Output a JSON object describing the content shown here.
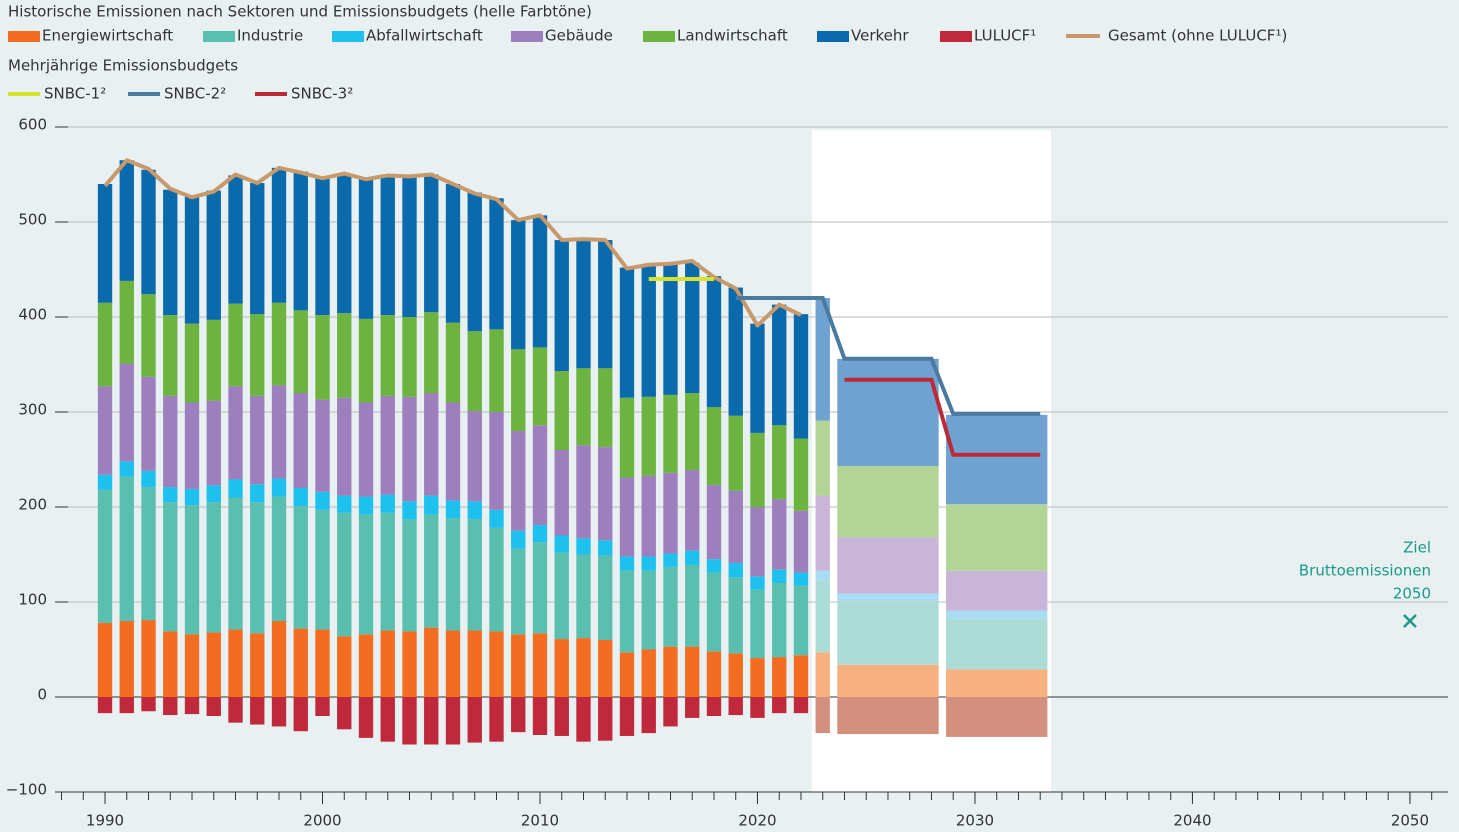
{
  "chart_data": {
    "type": "bar",
    "stacked": true,
    "title": "Historische Emissionen nach Sektoren und Emissionsbudgets (helle Farbtöne)",
    "subtitle": "Mehrjährige Emissionsbudgets",
    "x": [
      1990,
      1991,
      1992,
      1993,
      1994,
      1995,
      1996,
      1997,
      1998,
      1999,
      2000,
      2001,
      2002,
      2003,
      2004,
      2005,
      2006,
      2007,
      2008,
      2009,
      2010,
      2011,
      2012,
      2013,
      2014,
      2015,
      2016,
      2017,
      2018,
      2019,
      2020,
      2021,
      2022
    ],
    "series": [
      {
        "name": "Energiewirtschaft",
        "color": "#f26d21",
        "light_color": "#f7b07f",
        "values": [
          78,
          80,
          81,
          69,
          66,
          68,
          71,
          67,
          80,
          72,
          71,
          64,
          66,
          70,
          69,
          73,
          70,
          70,
          69,
          66,
          67,
          61,
          62,
          60,
          47,
          50,
          53,
          53,
          48,
          46,
          41,
          42,
          44
        ],
        "budget_values": [
          47,
          34,
          29
        ]
      },
      {
        "name": "Industrie",
        "color": "#5bbfb0",
        "light_color": "#addcd6",
        "values": [
          140,
          152,
          140,
          136,
          136,
          137,
          139,
          138,
          131,
          129,
          126,
          130,
          126,
          124,
          118,
          119,
          118,
          117,
          109,
          90,
          96,
          91,
          88,
          89,
          86,
          83,
          84,
          86,
          83,
          80,
          72,
          78,
          73
        ],
        "budget_values": [
          76,
          68,
          54
        ]
      },
      {
        "name": "Abfallwirtschaft",
        "color": "#1ec0ee",
        "light_color": "#a8dcf5",
        "values": [
          16,
          16,
          17,
          16,
          17,
          18,
          19,
          19,
          19,
          19,
          19,
          18,
          19,
          19,
          19,
          20,
          19,
          19,
          19,
          19,
          18,
          18,
          17,
          16,
          15,
          15,
          14,
          15,
          14,
          15,
          14,
          14,
          14
        ],
        "budget_values": [
          10,
          7,
          8
        ]
      },
      {
        "name": "Gebäude",
        "color": "#9e7fbd",
        "light_color": "#c9b5d8",
        "values": [
          93,
          103,
          99,
          96,
          91,
          89,
          98,
          93,
          98,
          100,
          97,
          103,
          99,
          104,
          110,
          108,
          103,
          95,
          103,
          105,
          105,
          90,
          98,
          98,
          83,
          85,
          85,
          85,
          78,
          76,
          73,
          74,
          65
        ],
        "budget_values": [
          79,
          59,
          42
        ]
      },
      {
        "name": "Landwirtschaft",
        "color": "#6cb33f",
        "light_color": "#b2d597",
        "values": [
          88,
          87,
          87,
          85,
          83,
          85,
          87,
          86,
          87,
          87,
          89,
          89,
          88,
          85,
          84,
          85,
          84,
          84,
          87,
          86,
          82,
          83,
          81,
          83,
          84,
          83,
          82,
          81,
          82,
          79,
          78,
          78,
          76
        ],
        "budget_values": [
          79,
          75,
          70
        ]
      },
      {
        "name": "Verkehr",
        "color": "#0a6aab",
        "light_color": "#6fa2d0",
        "values": [
          125,
          127,
          131,
          132,
          134,
          136,
          135,
          138,
          142,
          146,
          145,
          147,
          147,
          147,
          149,
          145,
          146,
          146,
          138,
          136,
          139,
          138,
          136,
          135,
          137,
          138,
          137,
          137,
          138,
          135,
          115,
          127,
          131
        ],
        "budget_values": [
          129,
          113,
          94
        ]
      },
      {
        "name": "LULUCF¹",
        "color": "#c0283b",
        "light_color": "#d4907e",
        "values": [
          -17,
          -17,
          -15,
          -19,
          -18,
          -20,
          -27,
          -29,
          -31,
          -36,
          -20,
          -34,
          -43,
          -47,
          -50,
          -50,
          -50,
          -48,
          -47,
          -37,
          -40,
          -41,
          -47,
          -46,
          -41,
          -38,
          -31,
          -22,
          -20,
          -19,
          -22,
          -17,
          -17
        ],
        "budget_values": [
          -38,
          -39,
          -42
        ]
      }
    ],
    "total": {
      "name": "Gesamt (ohne LULUCF¹)",
      "color": "#c8996a",
      "values": [
        538,
        565,
        556,
        535,
        526,
        532,
        550,
        541,
        557,
        552,
        546,
        551,
        545,
        549,
        548,
        550,
        540,
        530,
        524,
        502,
        507,
        481,
        482,
        481,
        451,
        455,
        456,
        459,
        442,
        430,
        391,
        413,
        402
      ]
    },
    "budget_periods": [
      [
        2023,
        2023
      ],
      [
        2024,
        2028
      ],
      [
        2029,
        2033
      ]
    ],
    "budget_lines": [
      {
        "name": "SNBC-1²",
        "color": "#d6e22b",
        "x": [
          2015,
          2018
        ],
        "values": [
          440,
          440
        ]
      },
      {
        "name": "SNBC-2²",
        "color": "#4a7aa0",
        "x": [
          2019,
          2023,
          2024,
          2028,
          2029,
          2033
        ],
        "values": [
          420,
          420,
          356,
          356,
          298,
          298
        ]
      },
      {
        "name": "SNBC-3²",
        "color": "#b92a3a",
        "x": [
          2024,
          2028,
          2029,
          2033
        ],
        "values": [
          334,
          334,
          255,
          255
        ]
      }
    ],
    "annotation": {
      "lines": [
        "Ziel",
        "Bruttoemissionen",
        "2050"
      ],
      "x": 2050,
      "value": 80,
      "color": "#1a9a8a"
    },
    "xlim": [
      1987.7,
      2051.75
    ],
    "ylim": [
      -100,
      600
    ],
    "xticks": [
      1990,
      2000,
      2010,
      2020,
      2030,
      2040,
      2050
    ],
    "yticks": [
      {
        "value": -100,
        "label": "−100"
      },
      0,
      100,
      200,
      300,
      400,
      500,
      600
    ],
    "grid": true
  }
}
